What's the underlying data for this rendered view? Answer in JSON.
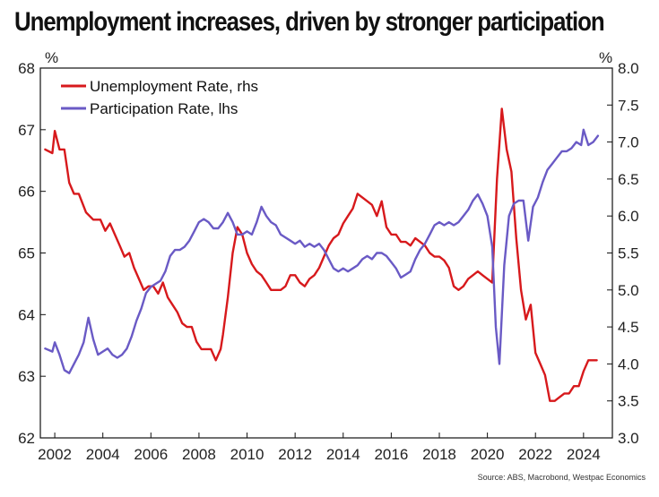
{
  "chart_data": {
    "type": "line",
    "title": "Unemployment increases, driven by stronger participation",
    "source": "Source: ABS, Macrobond, Westpac Economics",
    "xlim": [
      2001.4,
      2025.2
    ],
    "x_ticks": [
      2002,
      2004,
      2006,
      2008,
      2010,
      2012,
      2014,
      2016,
      2018,
      2020,
      2022,
      2024
    ],
    "x_tick_labels": [
      "2002",
      "2004",
      "2006",
      "2008",
      "2010",
      "2012",
      "2014",
      "2016",
      "2018",
      "2020",
      "2022",
      "2024"
    ],
    "y_left": {
      "unit": "%",
      "range": [
        62,
        68
      ],
      "ticks": [
        62,
        63,
        64,
        65,
        66,
        67,
        68
      ],
      "tick_labels": [
        "62",
        "63",
        "64",
        "65",
        "66",
        "67",
        "68"
      ]
    },
    "y_right": {
      "unit": "%",
      "range": [
        3.0,
        8.0
      ],
      "ticks": [
        3,
        3.5,
        4,
        4.5,
        5,
        5.5,
        6,
        6.5,
        7,
        7.5,
        8
      ],
      "tick_labels": [
        "3.0",
        "3.5",
        "4.0",
        "4.5",
        "5.0",
        "5.5",
        "6.0",
        "6.5",
        "7.0",
        "7.5",
        "8.0"
      ]
    },
    "legend": {
      "position": "top-left"
    },
    "series": [
      {
        "name": "Unemployment Rate, rhs",
        "axis": "right",
        "color": "#d7191c",
        "points": [
          [
            2001.6,
            6.9
          ],
          [
            2001.9,
            6.85
          ],
          [
            2002.0,
            7.15
          ],
          [
            2002.2,
            6.9
          ],
          [
            2002.4,
            6.9
          ],
          [
            2002.6,
            6.45
          ],
          [
            2002.8,
            6.3
          ],
          [
            2003.0,
            6.3
          ],
          [
            2003.3,
            6.05
          ],
          [
            2003.6,
            5.95
          ],
          [
            2003.9,
            5.95
          ],
          [
            2004.1,
            5.8
          ],
          [
            2004.3,
            5.9
          ],
          [
            2004.5,
            5.75
          ],
          [
            2004.7,
            5.6
          ],
          [
            2004.9,
            5.45
          ],
          [
            2005.1,
            5.5
          ],
          [
            2005.3,
            5.3
          ],
          [
            2005.5,
            5.15
          ],
          [
            2005.7,
            5.0
          ],
          [
            2005.9,
            5.05
          ],
          [
            2006.1,
            5.05
          ],
          [
            2006.3,
            4.95
          ],
          [
            2006.5,
            5.1
          ],
          [
            2006.7,
            4.9
          ],
          [
            2006.9,
            4.8
          ],
          [
            2007.1,
            4.7
          ],
          [
            2007.3,
            4.55
          ],
          [
            2007.5,
            4.5
          ],
          [
            2007.7,
            4.5
          ],
          [
            2007.9,
            4.3
          ],
          [
            2008.1,
            4.2
          ],
          [
            2008.3,
            4.2
          ],
          [
            2008.5,
            4.2
          ],
          [
            2008.7,
            4.05
          ],
          [
            2008.9,
            4.2
          ],
          [
            2009.0,
            4.4
          ],
          [
            2009.2,
            4.9
          ],
          [
            2009.4,
            5.5
          ],
          [
            2009.6,
            5.85
          ],
          [
            2009.8,
            5.75
          ],
          [
            2010.0,
            5.5
          ],
          [
            2010.2,
            5.35
          ],
          [
            2010.4,
            5.25
          ],
          [
            2010.6,
            5.2
          ],
          [
            2010.8,
            5.1
          ],
          [
            2011.0,
            5.0
          ],
          [
            2011.2,
            5.0
          ],
          [
            2011.4,
            5.0
          ],
          [
            2011.6,
            5.05
          ],
          [
            2011.8,
            5.2
          ],
          [
            2012.0,
            5.2
          ],
          [
            2012.2,
            5.1
          ],
          [
            2012.4,
            5.05
          ],
          [
            2012.6,
            5.15
          ],
          [
            2012.8,
            5.2
          ],
          [
            2013.0,
            5.3
          ],
          [
            2013.2,
            5.45
          ],
          [
            2013.4,
            5.6
          ],
          [
            2013.6,
            5.7
          ],
          [
            2013.8,
            5.75
          ],
          [
            2014.0,
            5.9
          ],
          [
            2014.2,
            6.0
          ],
          [
            2014.4,
            6.1
          ],
          [
            2014.6,
            6.3
          ],
          [
            2014.8,
            6.25
          ],
          [
            2015.0,
            6.2
          ],
          [
            2015.2,
            6.15
          ],
          [
            2015.4,
            6.0
          ],
          [
            2015.6,
            6.2
          ],
          [
            2015.8,
            5.85
          ],
          [
            2016.0,
            5.75
          ],
          [
            2016.2,
            5.75
          ],
          [
            2016.4,
            5.65
          ],
          [
            2016.6,
            5.65
          ],
          [
            2016.8,
            5.6
          ],
          [
            2017.0,
            5.7
          ],
          [
            2017.2,
            5.65
          ],
          [
            2017.4,
            5.6
          ],
          [
            2017.6,
            5.5
          ],
          [
            2017.8,
            5.45
          ],
          [
            2018.0,
            5.45
          ],
          [
            2018.2,
            5.4
          ],
          [
            2018.4,
            5.3
          ],
          [
            2018.6,
            5.05
          ],
          [
            2018.8,
            5.0
          ],
          [
            2019.0,
            5.05
          ],
          [
            2019.2,
            5.15
          ],
          [
            2019.4,
            5.2
          ],
          [
            2019.6,
            5.25
          ],
          [
            2019.8,
            5.2
          ],
          [
            2020.0,
            5.15
          ],
          [
            2020.2,
            5.1
          ],
          [
            2020.4,
            6.5
          ],
          [
            2020.6,
            7.45
          ],
          [
            2020.8,
            6.9
          ],
          [
            2021.0,
            6.6
          ],
          [
            2021.2,
            5.7
          ],
          [
            2021.4,
            5.0
          ],
          [
            2021.6,
            4.6
          ],
          [
            2021.8,
            4.8
          ],
          [
            2022.0,
            4.15
          ],
          [
            2022.2,
            4.0
          ],
          [
            2022.4,
            3.85
          ],
          [
            2022.6,
            3.5
          ],
          [
            2022.8,
            3.5
          ],
          [
            2023.0,
            3.55
          ],
          [
            2023.2,
            3.6
          ],
          [
            2023.4,
            3.6
          ],
          [
            2023.6,
            3.7
          ],
          [
            2023.8,
            3.7
          ],
          [
            2024.0,
            3.9
          ],
          [
            2024.2,
            4.05
          ],
          [
            2024.4,
            4.05
          ],
          [
            2024.55,
            4.05
          ]
        ]
      },
      {
        "name": "Participation Rate, lhs",
        "axis": "left",
        "color": "#6a5ac5",
        "points": [
          [
            2001.6,
            63.45
          ],
          [
            2001.9,
            63.4
          ],
          [
            2002.0,
            63.55
          ],
          [
            2002.2,
            63.35
          ],
          [
            2002.4,
            63.1
          ],
          [
            2002.6,
            63.05
          ],
          [
            2002.8,
            63.2
          ],
          [
            2003.0,
            63.35
          ],
          [
            2003.2,
            63.55
          ],
          [
            2003.4,
            63.95
          ],
          [
            2003.6,
            63.6
          ],
          [
            2003.8,
            63.35
          ],
          [
            2004.0,
            63.4
          ],
          [
            2004.2,
            63.45
          ],
          [
            2004.4,
            63.35
          ],
          [
            2004.6,
            63.3
          ],
          [
            2004.8,
            63.35
          ],
          [
            2005.0,
            63.45
          ],
          [
            2005.2,
            63.65
          ],
          [
            2005.4,
            63.9
          ],
          [
            2005.6,
            64.1
          ],
          [
            2005.8,
            64.35
          ],
          [
            2006.0,
            64.45
          ],
          [
            2006.2,
            64.5
          ],
          [
            2006.4,
            64.55
          ],
          [
            2006.6,
            64.7
          ],
          [
            2006.8,
            64.95
          ],
          [
            2007.0,
            65.05
          ],
          [
            2007.2,
            65.05
          ],
          [
            2007.4,
            65.1
          ],
          [
            2007.6,
            65.2
          ],
          [
            2007.8,
            65.35
          ],
          [
            2008.0,
            65.5
          ],
          [
            2008.2,
            65.55
          ],
          [
            2008.4,
            65.5
          ],
          [
            2008.6,
            65.4
          ],
          [
            2008.8,
            65.4
          ],
          [
            2009.0,
            65.5
          ],
          [
            2009.2,
            65.65
          ],
          [
            2009.4,
            65.5
          ],
          [
            2009.6,
            65.3
          ],
          [
            2009.8,
            65.3
          ],
          [
            2010.0,
            65.35
          ],
          [
            2010.2,
            65.3
          ],
          [
            2010.4,
            65.5
          ],
          [
            2010.6,
            65.75
          ],
          [
            2010.8,
            65.6
          ],
          [
            2011.0,
            65.5
          ],
          [
            2011.2,
            65.45
          ],
          [
            2011.4,
            65.3
          ],
          [
            2011.6,
            65.25
          ],
          [
            2011.8,
            65.2
          ],
          [
            2012.0,
            65.15
          ],
          [
            2012.2,
            65.2
          ],
          [
            2012.4,
            65.1
          ],
          [
            2012.6,
            65.15
          ],
          [
            2012.8,
            65.1
          ],
          [
            2013.0,
            65.15
          ],
          [
            2013.2,
            65.05
          ],
          [
            2013.4,
            64.9
          ],
          [
            2013.6,
            64.75
          ],
          [
            2013.8,
            64.7
          ],
          [
            2014.0,
            64.75
          ],
          [
            2014.2,
            64.7
          ],
          [
            2014.4,
            64.75
          ],
          [
            2014.6,
            64.8
          ],
          [
            2014.8,
            64.9
          ],
          [
            2015.0,
            64.95
          ],
          [
            2015.2,
            64.9
          ],
          [
            2015.4,
            65.0
          ],
          [
            2015.6,
            65.0
          ],
          [
            2015.8,
            64.95
          ],
          [
            2016.0,
            64.85
          ],
          [
            2016.2,
            64.75
          ],
          [
            2016.4,
            64.6
          ],
          [
            2016.6,
            64.65
          ],
          [
            2016.8,
            64.7
          ],
          [
            2017.0,
            64.9
          ],
          [
            2017.2,
            65.05
          ],
          [
            2017.4,
            65.15
          ],
          [
            2017.6,
            65.3
          ],
          [
            2017.8,
            65.45
          ],
          [
            2018.0,
            65.5
          ],
          [
            2018.2,
            65.45
          ],
          [
            2018.4,
            65.5
          ],
          [
            2018.6,
            65.45
          ],
          [
            2018.8,
            65.5
          ],
          [
            2019.0,
            65.6
          ],
          [
            2019.2,
            65.7
          ],
          [
            2019.4,
            65.85
          ],
          [
            2019.6,
            65.95
          ],
          [
            2019.8,
            65.8
          ],
          [
            2020.0,
            65.6
          ],
          [
            2020.2,
            65.1
          ],
          [
            2020.35,
            63.8
          ],
          [
            2020.5,
            63.2
          ],
          [
            2020.7,
            64.8
          ],
          [
            2020.9,
            65.6
          ],
          [
            2021.1,
            65.8
          ],
          [
            2021.3,
            65.85
          ],
          [
            2021.5,
            65.85
          ],
          [
            2021.7,
            65.2
          ],
          [
            2021.9,
            65.75
          ],
          [
            2022.1,
            65.9
          ],
          [
            2022.3,
            66.15
          ],
          [
            2022.5,
            66.35
          ],
          [
            2022.7,
            66.45
          ],
          [
            2022.9,
            66.55
          ],
          [
            2023.1,
            66.65
          ],
          [
            2023.3,
            66.65
          ],
          [
            2023.5,
            66.7
          ],
          [
            2023.7,
            66.8
          ],
          [
            2023.9,
            66.75
          ],
          [
            2024.0,
            67.0
          ],
          [
            2024.2,
            66.75
          ],
          [
            2024.4,
            66.8
          ],
          [
            2024.6,
            66.9
          ]
        ]
      }
    ]
  }
}
